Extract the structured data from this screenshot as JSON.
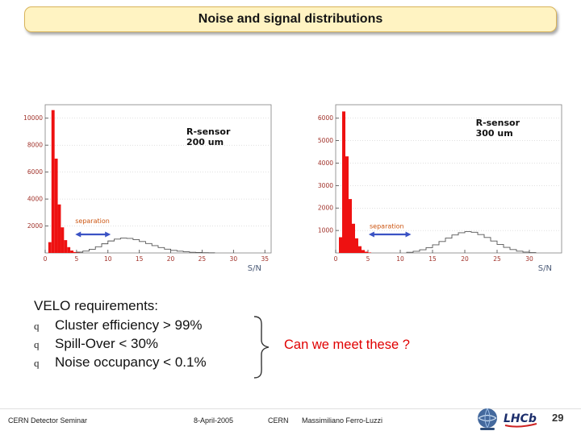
{
  "slide": {
    "title": "Noise and signal distributions",
    "requirements": {
      "heading": "VELO requirements:",
      "bullet_glyph": "q",
      "items": [
        "Cluster efficiency > 99%",
        "Spill-Over < 30%",
        "Noise occupancy < 0.1%"
      ],
      "callout": "Can we meet these ?"
    },
    "footer": {
      "seminar": "CERN Detector Seminar",
      "date": "8-April-2005",
      "org": "CERN",
      "author": "Massimiliano Ferro-Luzzi",
      "page": "29",
      "lhcb_logo_text": "LHCb"
    }
  },
  "chart_data": [
    {
      "type": "histogram",
      "label_lines": [
        "R-sensor",
        "200 um"
      ],
      "label_pos": {
        "fx": 0.625,
        "fy": 0.2
      },
      "xlabel": "S/N",
      "x_range": [
        0,
        36
      ],
      "x_ticks": [
        0,
        5,
        10,
        15,
        20,
        25,
        30,
        35
      ],
      "y_range": [
        0,
        11000
      ],
      "y_ticks": [
        2000,
        4000,
        6000,
        8000,
        10000
      ],
      "tick_color": "#a03028",
      "series": [
        {
          "name": "noise-peak",
          "style": "filled",
          "color": "#ee1111",
          "bin_start": 0.5,
          "bin_width": 0.5,
          "values": [
            800,
            10600,
            7000,
            3600,
            1900,
            950,
            430,
            180,
            70,
            25
          ]
        },
        {
          "name": "signal-distribution",
          "style": "outline",
          "color": "#555555",
          "bin_start": 5,
          "bin_width": 1,
          "values": [
            60,
            140,
            270,
            460,
            680,
            890,
            1030,
            1100,
            1080,
            990,
            850,
            700,
            540,
            400,
            280,
            190,
            130,
            85,
            50,
            30,
            18,
            10
          ]
        }
      ],
      "separation": {
        "text": "separation",
        "color": "#cc5511",
        "fx": 0.133,
        "fy": 0.8
      },
      "arrow": {
        "color": "#3a52c4",
        "fx1": 0.133,
        "fx2": 0.29,
        "fy": 0.875
      }
    },
    {
      "type": "histogram",
      "label_lines": [
        "R-sensor",
        "300 um"
      ],
      "label_pos": {
        "fx": 0.62,
        "fy": 0.14
      },
      "xlabel": "S/N",
      "x_range": [
        0,
        35
      ],
      "x_ticks": [
        0,
        5,
        10,
        15,
        20,
        25,
        30
      ],
      "y_range": [
        0,
        6600
      ],
      "y_ticks": [
        1000,
        2000,
        3000,
        4000,
        5000,
        6000
      ],
      "tick_color": "#a03028",
      "series": [
        {
          "name": "noise-peak",
          "style": "filled",
          "color": "#ee1111",
          "bin_start": 0.5,
          "bin_width": 0.5,
          "values": [
            700,
            6300,
            4300,
            2400,
            1300,
            650,
            300,
            130,
            55,
            20
          ]
        },
        {
          "name": "signal-distribution",
          "style": "outline",
          "color": "#555555",
          "bin_start": 11,
          "bin_width": 1,
          "values": [
            30,
            75,
            140,
            235,
            360,
            510,
            660,
            800,
            900,
            950,
            920,
            820,
            690,
            530,
            380,
            250,
            150,
            80,
            38,
            16
          ]
        }
      ],
      "separation": {
        "text": "separation",
        "color": "#cc5511",
        "fx": 0.15,
        "fy": 0.835
      },
      "arrow": {
        "color": "#3a52c4",
        "fx1": 0.146,
        "fx2": 0.334,
        "fy": 0.875
      }
    }
  ]
}
